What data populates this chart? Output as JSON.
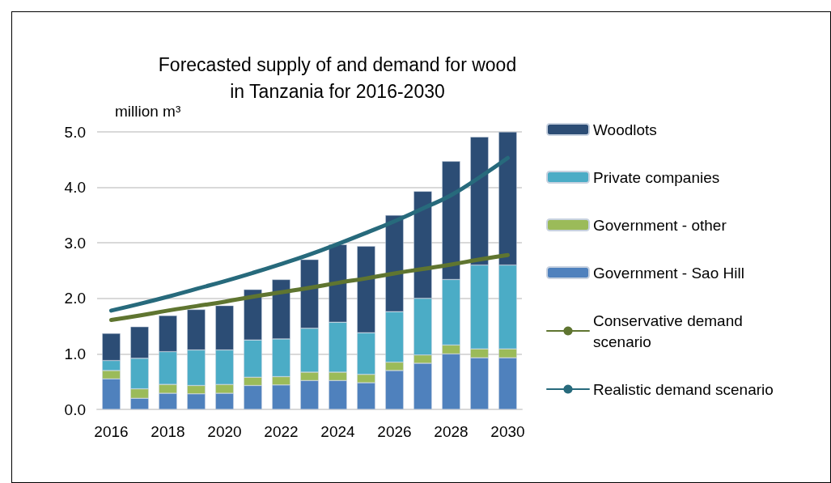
{
  "chart_data": {
    "type": "bar",
    "title": "Forecasted supply of and demand for wood\nin Tanzania for 2016-2030",
    "ylabel": "million m³",
    "categories": [
      "2016",
      null,
      "2018",
      null,
      "2020",
      null,
      "2022",
      null,
      "2024",
      null,
      "2026",
      null,
      "2028",
      null,
      "2030"
    ],
    "stacked": true,
    "series": [
      {
        "name": "Government - Sao Hill",
        "color": "#4f81bd",
        "values": [
          0.55,
          0.2,
          0.29,
          0.28,
          0.29,
          0.43,
          0.44,
          0.52,
          0.52,
          0.48,
          0.7,
          0.83,
          1.0,
          0.93,
          0.93
        ]
      },
      {
        "name": "Government - other",
        "color": "#9bbb59",
        "values": [
          0.15,
          0.17,
          0.16,
          0.15,
          0.16,
          0.15,
          0.15,
          0.15,
          0.15,
          0.15,
          0.15,
          0.15,
          0.16,
          0.16,
          0.16
        ]
      },
      {
        "name": "Private companies",
        "color": "#4bacc6",
        "values": [
          0.18,
          0.55,
          0.59,
          0.64,
          0.62,
          0.67,
          0.68,
          0.79,
          0.9,
          0.75,
          0.91,
          1.02,
          1.18,
          1.51,
          1.51
        ]
      },
      {
        "name": "Woodlots",
        "color": "#2c4d75",
        "values": [
          0.49,
          0.57,
          0.65,
          0.73,
          0.8,
          0.91,
          1.07,
          1.24,
          1.4,
          1.56,
          1.74,
          1.93,
          2.13,
          2.31,
          2.4
        ]
      },
      {
        "name": "Conservative demand scenario",
        "type": "line",
        "color": "#5f7530",
        "values": [
          1.61,
          1.69,
          1.78,
          1.86,
          1.94,
          2.03,
          2.11,
          2.19,
          2.28,
          2.36,
          2.45,
          2.53,
          2.61,
          2.7,
          2.78
        ]
      },
      {
        "name": "Realistic demand scenario",
        "type": "line",
        "color": "#276a7c",
        "values": [
          1.78,
          1.9,
          2.03,
          2.17,
          2.31,
          2.46,
          2.62,
          2.79,
          2.98,
          3.18,
          3.39,
          3.62,
          3.86,
          4.18,
          4.53
        ]
      }
    ],
    "ylim": [
      0,
      5
    ],
    "yticks": [
      {
        "value": 0,
        "label": "0.0"
      },
      {
        "value": 1,
        "label": "1.0"
      },
      {
        "value": 2,
        "label": "2.0"
      },
      {
        "value": 3,
        "label": "3.0"
      },
      {
        "value": 4,
        "label": "4.0"
      },
      {
        "value": 5,
        "label": "5.0"
      }
    ],
    "grid": "y",
    "legend": "right",
    "marker": "none",
    "line_style": "solid"
  }
}
